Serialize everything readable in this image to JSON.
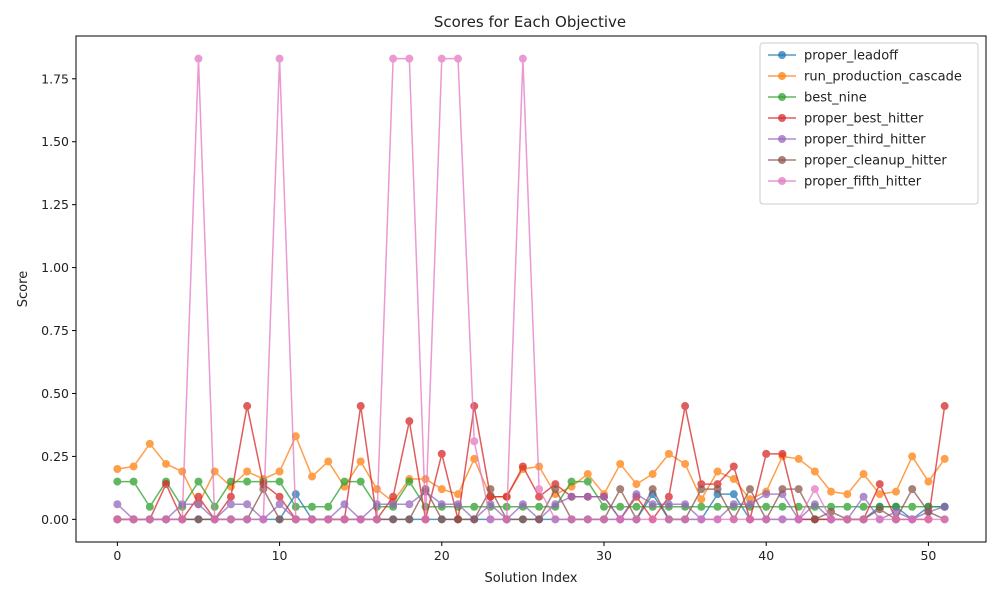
{
  "chart_data": {
    "type": "line",
    "title": "Scores for Each Objective",
    "xlabel": "Solution Index",
    "ylabel": "Score",
    "xlim": [
      -2.55,
      53.55
    ],
    "ylim": [
      -0.09,
      1.92
    ],
    "xticks": [
      0,
      10,
      20,
      30,
      40,
      50
    ],
    "xtick_labels": [
      "0",
      "10",
      "20",
      "30",
      "40",
      "50"
    ],
    "yticks": [
      0.0,
      0.25,
      0.5,
      0.75,
      1.0,
      1.25,
      1.5,
      1.75
    ],
    "ytick_labels": [
      "0.00",
      "0.25",
      "0.50",
      "0.75",
      "1.00",
      "1.25",
      "1.50",
      "1.75"
    ],
    "grid": false,
    "legend_position": "top-right",
    "x": [
      0,
      1,
      2,
      3,
      4,
      5,
      6,
      7,
      8,
      9,
      10,
      11,
      12,
      13,
      14,
      15,
      16,
      17,
      18,
      19,
      20,
      21,
      22,
      23,
      24,
      25,
      26,
      27,
      28,
      29,
      30,
      31,
      32,
      33,
      34,
      35,
      36,
      37,
      38,
      39,
      40,
      41,
      42,
      43,
      44,
      45,
      46,
      47,
      48,
      49,
      50,
      51
    ],
    "series": [
      {
        "name": "proper_leadoff",
        "color": "#1f77b4",
        "values": [
          0,
          0,
          0,
          0,
          0,
          0,
          0,
          0,
          0,
          0,
          0,
          0.1,
          0,
          0,
          0,
          0,
          0,
          0,
          0,
          0,
          0,
          0,
          0,
          0,
          0,
          0,
          0,
          0,
          0,
          0,
          0,
          0,
          0,
          0.1,
          0,
          0,
          0,
          0.1,
          0.1,
          0,
          0,
          0,
          0,
          0,
          0,
          0,
          0,
          0.05,
          0.05,
          0,
          0.05,
          0.05
        ]
      },
      {
        "name": "run_production_cascade",
        "color": "#ff7f0e",
        "values": [
          0.2,
          0.21,
          0.3,
          0.22,
          0.19,
          0.06,
          0.19,
          0.13,
          0.19,
          0.16,
          0.19,
          0.33,
          0.17,
          0.23,
          0.13,
          0.23,
          0.12,
          0.07,
          0.16,
          0.16,
          0.12,
          0.1,
          0.24,
          0.09,
          0.09,
          0.2,
          0.21,
          0.1,
          0.13,
          0.18,
          0.1,
          0.22,
          0.14,
          0.18,
          0.26,
          0.22,
          0.08,
          0.19,
          0.16,
          0.08,
          0.11,
          0.25,
          0.24,
          0.19,
          0.11,
          0.1,
          0.18,
          0.1,
          0.11,
          0.25,
          0.15,
          0.24
        ]
      },
      {
        "name": "best_nine",
        "color": "#2ca02c",
        "values": [
          0.15,
          0.15,
          0.05,
          0.15,
          0.05,
          0.15,
          0.05,
          0.15,
          0.15,
          0.15,
          0.15,
          0.05,
          0.05,
          0.05,
          0.15,
          0.15,
          0.05,
          0.05,
          0.15,
          0.05,
          0.05,
          0.05,
          0.05,
          0.05,
          0.05,
          0.05,
          0.05,
          0.05,
          0.15,
          0.15,
          0.05,
          0.05,
          0.05,
          0.05,
          0.05,
          0.05,
          0.05,
          0.05,
          0.05,
          0.05,
          0.05,
          0.05,
          0.05,
          0.05,
          0.05,
          0.05,
          0.05,
          0.05,
          0.05,
          0.05,
          0.05,
          0.05
        ]
      },
      {
        "name": "proper_best_hitter",
        "color": "#d62728",
        "values": [
          0,
          0,
          0,
          0.14,
          0,
          0.09,
          0,
          0.09,
          0.45,
          0.14,
          0.09,
          0,
          0,
          0,
          0,
          0.45,
          0,
          0.09,
          0.39,
          0,
          0.26,
          0,
          0.45,
          0.09,
          0.09,
          0.21,
          0.09,
          0.14,
          0.09,
          0.09,
          0.09,
          0,
          0.09,
          0,
          0.09,
          0.45,
          0.14,
          0.14,
          0.21,
          0,
          0.26,
          0.26,
          0,
          0,
          0,
          0,
          0,
          0.14,
          0,
          0,
          0,
          0.45
        ]
      },
      {
        "name": "proper_third_hitter",
        "color": "#9467bd",
        "values": [
          0.06,
          0,
          0,
          0,
          0.06,
          0.06,
          0,
          0.06,
          0.06,
          0,
          0.06,
          0,
          0,
          0,
          0.06,
          0,
          0.06,
          0.06,
          0.06,
          0.11,
          0.06,
          0.06,
          0,
          0.06,
          0,
          0.06,
          0,
          0.06,
          0.09,
          0.09,
          0.09,
          0,
          0.1,
          0.06,
          0.06,
          0.06,
          0,
          0,
          0.06,
          0.06,
          0.1,
          0.1,
          0,
          0.06,
          0,
          0,
          0.09,
          0,
          0.03,
          0,
          0.03,
          0.05
        ]
      },
      {
        "name": "proper_cleanup_hitter",
        "color": "#8c564b",
        "values": [
          0,
          0,
          0,
          0,
          0,
          0,
          0,
          0,
          0,
          0.12,
          0,
          0,
          0,
          0,
          0,
          0,
          0,
          0,
          0,
          0.12,
          0,
          0,
          0,
          0.12,
          0,
          0,
          0,
          0.12,
          0,
          0,
          0,
          0.12,
          0,
          0.12,
          0,
          0,
          0.12,
          0.12,
          0,
          0.12,
          0,
          0.12,
          0.12,
          0,
          0.03,
          0,
          0,
          0.04,
          0,
          0.12,
          0.03,
          0
        ]
      },
      {
        "name": "proper_fifth_hitter",
        "color": "#e377c2",
        "values": [
          0,
          0,
          0,
          0,
          0,
          1.83,
          0,
          0,
          0,
          0,
          1.83,
          0,
          0,
          0,
          0,
          0,
          0,
          1.83,
          1.83,
          0,
          1.83,
          1.83,
          0.31,
          0,
          0,
          1.83,
          0.12,
          0,
          0,
          0,
          0,
          0,
          0,
          0,
          0,
          0,
          0,
          0,
          0,
          0,
          0,
          0,
          0,
          0.12,
          0,
          0,
          0,
          0,
          0,
          0,
          0,
          0
        ]
      }
    ]
  }
}
